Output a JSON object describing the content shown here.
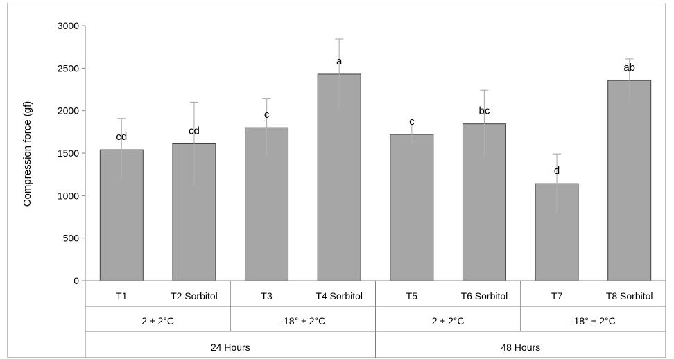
{
  "chart_data": {
    "type": "bar",
    "title": "",
    "ylabel": "Compression force  (gf)",
    "xlabel": "",
    "ylim": [
      0,
      3000
    ],
    "yticks": [
      0,
      500,
      1000,
      1500,
      2000,
      2500,
      3000
    ],
    "categories": [
      "T1",
      "T2 Sorbitol",
      "T3",
      "T4 Sorbitol",
      "T5",
      "T6 Sorbitol",
      "T7",
      "T8 Sorbitol"
    ],
    "values": [
      1540,
      1610,
      1800,
      2430,
      1720,
      1845,
      1140,
      2355
    ],
    "error_upper": [
      370,
      490,
      340,
      415,
      110,
      395,
      350,
      255
    ],
    "significance": [
      "cd",
      "cd",
      "c",
      "a",
      "c",
      "bc",
      "d",
      "ab"
    ],
    "groups_level1": [
      {
        "label": "2 ± 2°C",
        "span": [
          0,
          1
        ]
      },
      {
        "label": "-18° ± 2°C",
        "span": [
          2,
          3
        ]
      },
      {
        "label": "2 ± 2°C",
        "span": [
          4,
          5
        ]
      },
      {
        "label": "-18° ± 2°C",
        "span": [
          6,
          7
        ]
      }
    ],
    "groups_level2": [
      {
        "label": "24 Hours",
        "span": [
          0,
          3
        ]
      },
      {
        "label": "48 Hours",
        "span": [
          4,
          7
        ]
      }
    ],
    "bar_color": "#a6a6a6",
    "bar_edge_color": "#404040",
    "error_bar_color": "#b3b3b3",
    "grid": false,
    "legend": "none"
  }
}
